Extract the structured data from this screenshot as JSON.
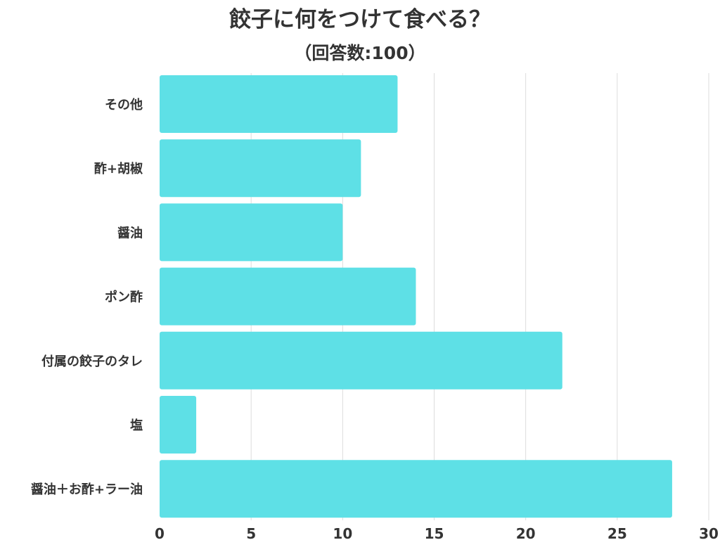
{
  "title": "餃子に何をつけて食べる？",
  "subtitle": "（回答数:100）",
  "colors": {
    "bar": "#5ee0e6",
    "grid": "#dddddd",
    "text": "#333333"
  },
  "chart_data": {
    "type": "bar",
    "orientation": "horizontal",
    "title": "餃子に何をつけて食べる？",
    "subtitle": "（回答数:100）",
    "categories": [
      "その他",
      "酢+胡椒",
      "醤油",
      "ポン酢",
      "付属の餃子のタレ",
      "塩",
      "醤油＋お酢+ラー油"
    ],
    "values": [
      13,
      11,
      10,
      14,
      22,
      2,
      28
    ],
    "xlim": [
      0,
      30
    ],
    "xticks": [
      "0",
      "5",
      "10",
      "15",
      "20",
      "25",
      "30"
    ],
    "grid": true,
    "legend": false
  }
}
